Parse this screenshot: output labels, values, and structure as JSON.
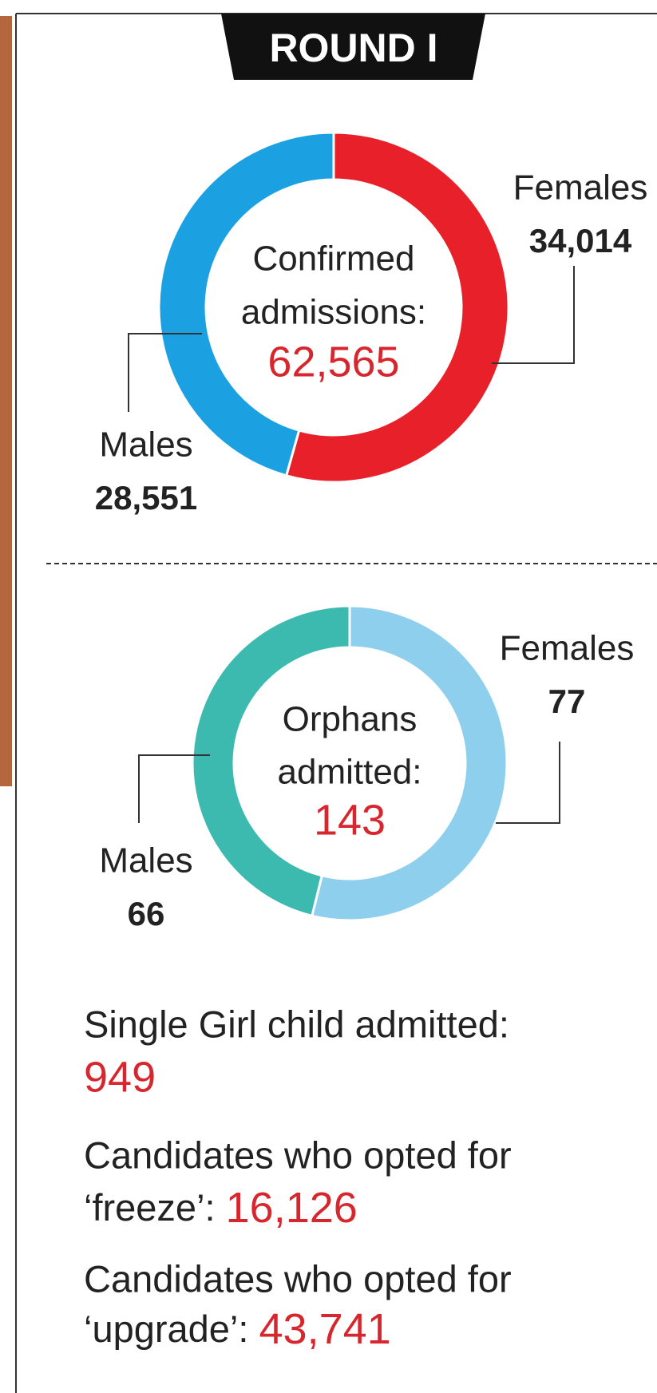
{
  "header": "ROUND I",
  "chart_data": [
    {
      "type": "donut",
      "center_lines": [
        "Confirmed",
        "admissions:"
      ],
      "center_value": 62565,
      "center_value_label": "62,565",
      "categories": [
        "Females",
        "Males"
      ],
      "values": [
        34014,
        28551
      ],
      "value_labels": [
        "34,014",
        "28,551"
      ],
      "colors": [
        "#e8202a",
        "#1ba1e2"
      ]
    },
    {
      "type": "donut",
      "center_lines": [
        "Orphans",
        "admitted:"
      ],
      "center_value": 143,
      "center_value_label": "143",
      "categories": [
        "Females",
        "Males"
      ],
      "values": [
        77,
        66
      ],
      "value_labels": [
        "77",
        "66"
      ],
      "colors": [
        "#8ecfee",
        "#3dbab0"
      ]
    }
  ],
  "notes": [
    {
      "lines": [
        "Single Girl child admitted:"
      ],
      "value": "949"
    },
    {
      "lines": [
        "Candidates who opted for",
        "‘freeze’:"
      ],
      "value": "16,126"
    },
    {
      "lines": [
        "Candidates who opted for",
        "‘upgrade’:"
      ],
      "value": "43,741"
    }
  ]
}
